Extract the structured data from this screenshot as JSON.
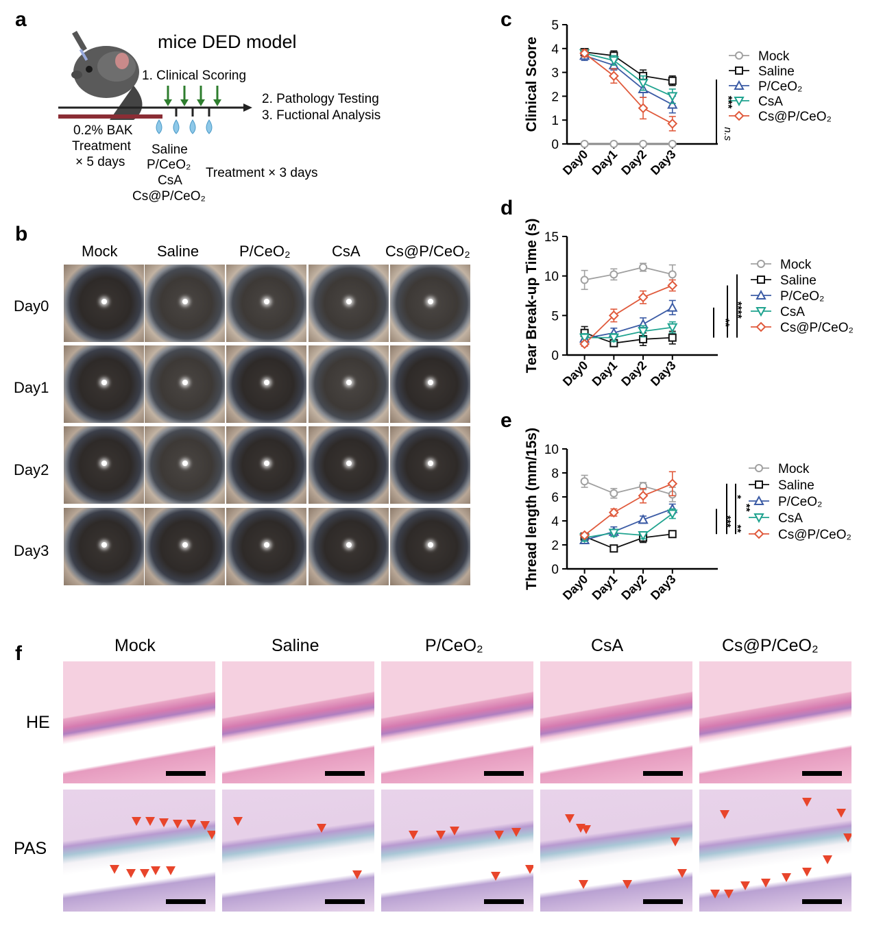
{
  "panels": {
    "a": "a",
    "b": "b",
    "c": "c",
    "d": "d",
    "e": "e",
    "f": "f"
  },
  "schematic": {
    "title": "mice DED model",
    "step1": "1.  Clinical Scoring",
    "step2": "2.  Pathology Testing",
    "step3": "3.  Fuctional Analysis",
    "bak_line1": "0.2% BAK",
    "bak_line2": "Treatment",
    "bak_line3": "× 5 days",
    "treat_saline": "Saline",
    "treat_pceo2": "P/CeO₂",
    "treat_csa": "CsA",
    "treat_cspceo2": "Cs@P/CeO₂",
    "treat_duration": "Treatment × 3 days",
    "colors": {
      "bak_bar": "#8b2d35",
      "arrow": "#2e7d2e",
      "drop": "#8ec8e8"
    }
  },
  "eye_grid": {
    "columns": [
      "Mock",
      "Saline",
      "P/CeO₂",
      "CsA",
      "Cs@P/CeO₂"
    ],
    "rows": [
      "Day0",
      "Day1",
      "Day2",
      "Day3"
    ]
  },
  "histology": {
    "columns": [
      "Mock",
      "Saline",
      "P/CeO₂",
      "CsA",
      "Cs@P/CeO₂"
    ],
    "rows": [
      "HE",
      "PAS"
    ],
    "arrow_color": "#e8452b"
  },
  "chart_data": [
    {
      "type": "line",
      "panel": "c",
      "categories": [
        "Day0",
        "Day1",
        "Day2",
        "Day3"
      ],
      "ylabel": "Clinical Score",
      "ylim": [
        0,
        5
      ],
      "yticks": [
        "0",
        "1",
        "2",
        "3",
        "4",
        "5"
      ],
      "series": [
        {
          "name": "Mock",
          "values": [
            0,
            0,
            0,
            0
          ],
          "errors": [
            0,
            0,
            0,
            0
          ],
          "color": "#a0a0a0",
          "marker": "circle"
        },
        {
          "name": "Saline",
          "values": [
            3.85,
            3.7,
            2.85,
            2.65
          ],
          "errors": [
            0.15,
            0.2,
            0.25,
            0.2
          ],
          "color": "#111111",
          "marker": "square"
        },
        {
          "name": "P/CeO₂",
          "values": [
            3.7,
            3.3,
            2.3,
            1.65
          ],
          "errors": [
            0.2,
            0.2,
            0.35,
            0.35
          ],
          "color": "#3b5ba5",
          "marker": "triangle-up"
        },
        {
          "name": "CsA",
          "values": [
            3.8,
            3.5,
            2.55,
            2.0
          ],
          "errors": [
            0.15,
            0.2,
            0.3,
            0.3
          ],
          "color": "#1fa38f",
          "marker": "triangle-down"
        },
        {
          "name": "Cs@P/CeO₂",
          "values": [
            3.8,
            2.85,
            1.5,
            0.85
          ],
          "errors": [
            0.15,
            0.3,
            0.45,
            0.3
          ],
          "color": "#e05a3c",
          "marker": "diamond"
        }
      ],
      "significance": [
        "***",
        "n.s"
      ]
    },
    {
      "type": "line",
      "panel": "d",
      "categories": [
        "Day0",
        "Day1",
        "Day2",
        "Day3"
      ],
      "ylabel": "Tear Break-up Time (s)",
      "ylim": [
        0,
        15
      ],
      "yticks": [
        "0",
        "5",
        "10",
        "15"
      ],
      "series": [
        {
          "name": "Mock",
          "values": [
            9.5,
            10.2,
            11.1,
            10.2
          ],
          "errors": [
            1.2,
            0.7,
            0.5,
            1.2
          ],
          "color": "#a0a0a0",
          "marker": "circle"
        },
        {
          "name": "Saline",
          "values": [
            2.8,
            1.5,
            2.0,
            2.2
          ],
          "errors": [
            0.8,
            0.4,
            0.8,
            0.8
          ],
          "color": "#111111",
          "marker": "square"
        },
        {
          "name": "P/CeO₂",
          "values": [
            2.1,
            2.8,
            3.9,
            6.0
          ],
          "errors": [
            0.5,
            0.6,
            0.8,
            0.9
          ],
          "color": "#3b5ba5",
          "marker": "triangle-up"
        },
        {
          "name": "CsA",
          "values": [
            2.2,
            2.2,
            3.0,
            3.5
          ],
          "errors": [
            0.5,
            0.5,
            0.7,
            0.7
          ],
          "color": "#1fa38f",
          "marker": "triangle-down"
        },
        {
          "name": "Cs@P/CeO₂",
          "values": [
            1.4,
            5.0,
            7.3,
            8.8
          ],
          "errors": [
            0.3,
            0.8,
            0.8,
            0.7
          ],
          "color": "#e05a3c",
          "marker": "diamond"
        }
      ],
      "significance": [
        "**",
        "****"
      ]
    },
    {
      "type": "line",
      "panel": "e",
      "categories": [
        "Day0",
        "Day1",
        "Day2",
        "Day3"
      ],
      "ylabel": "Thread length (mm/15s)",
      "ylim": [
        0,
        10
      ],
      "yticks": [
        "0",
        "2",
        "4",
        "6",
        "8",
        "10"
      ],
      "series": [
        {
          "name": "Mock",
          "values": [
            7.3,
            6.3,
            6.9,
            6.2
          ],
          "errors": [
            0.5,
            0.4,
            0.3,
            0.6
          ],
          "color": "#a0a0a0",
          "marker": "circle"
        },
        {
          "name": "Saline",
          "values": [
            2.7,
            1.7,
            2.6,
            2.9
          ],
          "errors": [
            0.2,
            0.2,
            0.4,
            0.2
          ],
          "color": "#111111",
          "marker": "square"
        },
        {
          "name": "P/CeO₂",
          "values": [
            2.4,
            3.1,
            4.1,
            5.0
          ],
          "errors": [
            0.3,
            0.4,
            0.3,
            0.4
          ],
          "color": "#3b5ba5",
          "marker": "triangle-up"
        },
        {
          "name": "CsA",
          "values": [
            2.6,
            3.0,
            2.8,
            4.6
          ],
          "errors": [
            0.3,
            0.3,
            0.3,
            0.4
          ],
          "color": "#1fa38f",
          "marker": "triangle-down"
        },
        {
          "name": "Cs@P/CeO₂",
          "values": [
            2.8,
            4.7,
            6.1,
            7.1
          ],
          "errors": [
            0.2,
            0.3,
            0.6,
            1.0
          ],
          "color": "#e05a3c",
          "marker": "diamond"
        }
      ],
      "significance": [
        "***",
        "**",
        "*",
        "**"
      ]
    }
  ]
}
